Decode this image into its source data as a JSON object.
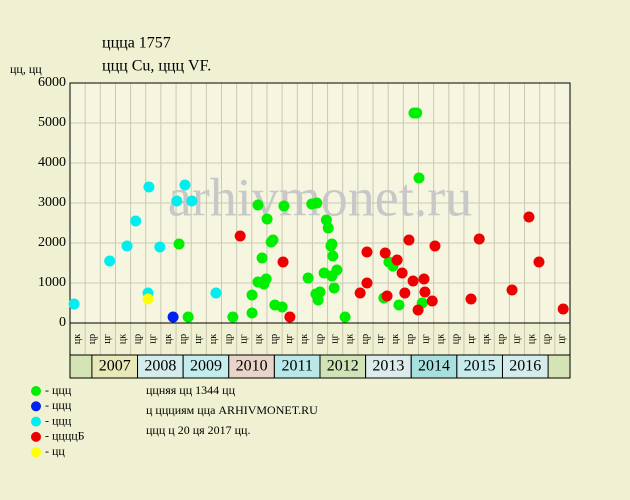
{
  "chart_data": {
    "type": "scatter",
    "title": "ццца 1757",
    "subtitle": "ццц Cu, ццц VF.",
    "y_label": "цц, цц",
    "watermark": "arhivmonet.ru",
    "xlim": [
      2006.52,
      2017.48
    ],
    "ylim": [
      0,
      6000
    ],
    "yticks": [
      0,
      1000,
      2000,
      3000,
      4000,
      5000,
      6000
    ],
    "grid": true,
    "column_labels": [
      "цк",
      "цр",
      "цг",
      "цк",
      "цр",
      "цг",
      "цк",
      "цр",
      "цг",
      "цк",
      "цр",
      "цг",
      "цк",
      "цр",
      "цг",
      "цк",
      "цр",
      "цг",
      "цк",
      "цр",
      "цг",
      "цк",
      "цр",
      "цг",
      "цк",
      "цр",
      "цг",
      "цк",
      "цр",
      "цг",
      "цк",
      "цр",
      "цг"
    ],
    "years": [
      2007,
      2008,
      2009,
      2010,
      2011,
      2012,
      2013,
      2014,
      2015,
      2016
    ],
    "year_colors": [
      "#e8e8b8",
      "#d4ecec",
      "#c4ecec",
      "#e8d4c8",
      "#b8e8e8",
      "#d0e4b8",
      "#dcecec",
      "#a8e0e0",
      "#c8ecec",
      "#d4ecec"
    ],
    "series": [
      {
        "name": "- ццц",
        "color": "#00ee00",
        "x": [
          2008.91,
          2009.11,
          2010.09,
          2010.51,
          2010.51,
          2010.64,
          2010.64,
          2010.73,
          2010.77,
          2010.82,
          2010.84,
          2010.93,
          2010.97,
          2011.01,
          2011.17,
          2011.21,
          2011.74,
          2011.82,
          2011.91,
          2011.93,
          2011.96,
          2012.0,
          2012.09,
          2012.14,
          2012.18,
          2012.24,
          2012.26,
          2012.26,
          2012.28,
          2012.31,
          2012.37,
          2012.55,
          2013.4,
          2013.51,
          2013.6,
          2013.73,
          2014.06,
          2014.12,
          2014.17,
          2014.24
        ],
        "values": [
          1975,
          150,
          150,
          250,
          700,
          2950,
          1025,
          1625,
          975,
          1100,
          2600,
          2025,
          2075,
          450,
          400,
          2925,
          1125,
          2975,
          725,
          3000,
          575,
          775,
          1250,
          2575,
          2375,
          1925,
          1975,
          1175,
          1675,
          875,
          1325,
          150,
          625,
          1525,
          1425,
          450,
          5250,
          5250,
          3625,
          500
        ]
      },
      {
        "name": "- ццц",
        "color": "#0022ee",
        "x": [
          2008.78
        ],
        "values": [
          150
        ]
      },
      {
        "name": "- ццц",
        "color": "#00eeee",
        "x": [
          2006.61,
          2007.39,
          2007.77,
          2007.96,
          2008.25,
          2008.23,
          2008.49,
          2008.86,
          2009.04,
          2009.19,
          2009.72
        ],
        "values": [
          475,
          1550,
          1925,
          2550,
          3400,
          750,
          1900,
          3050,
          3450,
          3050,
          750
        ]
      },
      {
        "name": "- ццццБ",
        "color": "#ee0000",
        "x": [
          2010.25,
          2011.19,
          2011.34,
          2012.88,
          2013.03,
          2013.03,
          2013.43,
          2013.47,
          2013.69,
          2013.8,
          2013.86,
          2013.95,
          2014.04,
          2014.15,
          2014.28,
          2014.3,
          2014.46,
          2014.52,
          2015.31,
          2015.49,
          2016.21,
          2016.58,
          2016.8,
          2017.33
        ],
        "values": [
          2175,
          1525,
          150,
          750,
          1775,
          1000,
          1750,
          675,
          1575,
          1250,
          750,
          2075,
          1050,
          325,
          1100,
          775,
          550,
          1925,
          600,
          2100,
          825,
          2650,
          1525,
          350
        ]
      },
      {
        "name": "- цц",
        "color": "#ffff00",
        "x": [
          2008.23
        ],
        "values": [
          600
        ]
      }
    ],
    "notes": [
      "ццняя цц 1344 цц",
      "ц ццциям цца ARHIVMONET.RU",
      "ццц ц 20 ця 2017 цц."
    ]
  }
}
